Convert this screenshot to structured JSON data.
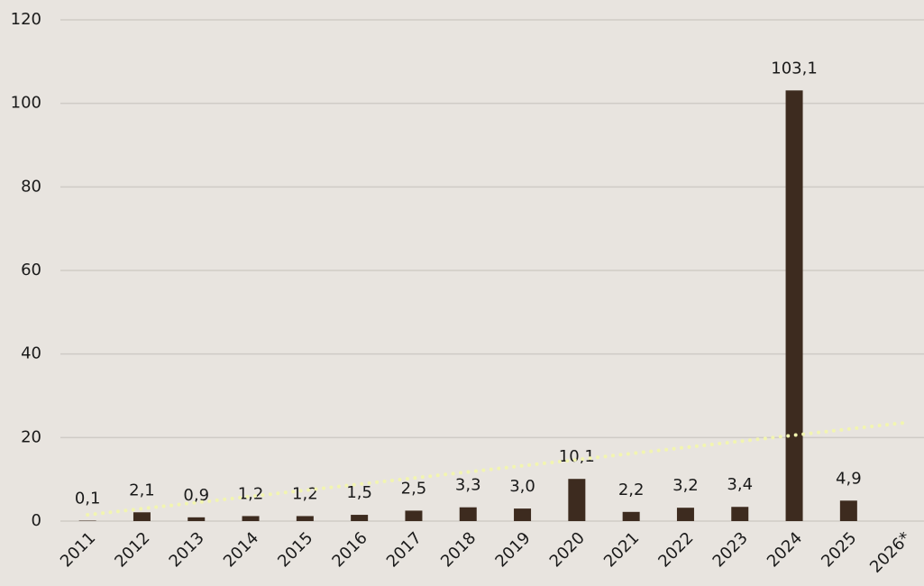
{
  "chart_data": {
    "type": "bar",
    "categories": [
      "2011",
      "2012",
      "2013",
      "2014",
      "2015",
      "2016",
      "2017",
      "2018",
      "2019",
      "2020",
      "2021",
      "2022",
      "2023",
      "2024",
      "2025",
      "2026*"
    ],
    "values": [
      0.1,
      2.1,
      0.9,
      1.2,
      1.2,
      1.5,
      2.5,
      3.3,
      3.0,
      10.1,
      2.2,
      3.2,
      3.4,
      103.1,
      4.9,
      null
    ],
    "value_labels": [
      "0,1",
      "2,1",
      "0,9",
      "1,2",
      "1,2",
      "1,5",
      "2,5",
      "3,3",
      "3,0",
      "10,1",
      "2,2",
      "3,2",
      "3,4",
      "103,1",
      "4,9",
      null
    ],
    "color": "#3d2b1f",
    "ylim": [
      0,
      120
    ],
    "yticks": [
      0,
      20,
      40,
      60,
      80,
      100,
      120
    ],
    "grid": true,
    "trend": {
      "color": "#f2f5b0",
      "start": 1.5,
      "end": 23.5
    }
  }
}
